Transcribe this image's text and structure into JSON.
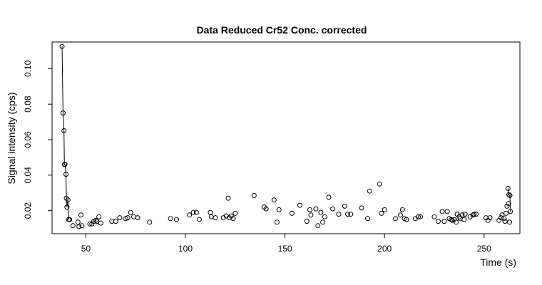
{
  "chart_data": {
    "type": "scatter",
    "title": "Data Reduced Cr52 Conc. corrected",
    "xlabel": "Time (s)",
    "ylabel": "Signal intensity (cps)",
    "xlim": [
      33,
      268
    ],
    "ylim": [
      0.007,
      0.115
    ],
    "x_ticks": [
      50,
      100,
      150,
      200,
      250
    ],
    "y_ticks": [
      0.02,
      0.04,
      0.06,
      0.08,
      0.1
    ],
    "x_tick_labels": [
      "50",
      "100",
      "150",
      "200",
      "250"
    ],
    "y_tick_labels": [
      "0.02",
      "0.04",
      "0.06",
      "0.08",
      "0.10"
    ],
    "grid": false,
    "legend": "none",
    "line_segments": [
      [
        [
          38.0,
          0.1125
        ],
        [
          38.5,
          0.075
        ],
        [
          39.0,
          0.065
        ],
        [
          39.2,
          0.046
        ],
        [
          39.5,
          0.046
        ],
        [
          40.0,
          0.0405
        ],
        [
          40.2,
          0.027
        ],
        [
          40.5,
          0.022
        ],
        [
          41.0,
          0.026
        ],
        [
          41.5,
          0.015
        ]
      ],
      [
        [
          262.0,
          0.0325
        ],
        [
          262.5,
          0.029
        ],
        [
          263.0,
          0.0285
        ],
        [
          263.2,
          0.0195
        ]
      ]
    ],
    "points": [
      [
        38.0,
        0.1125
      ],
      [
        38.5,
        0.075
      ],
      [
        39.0,
        0.065
      ],
      [
        39.2,
        0.046
      ],
      [
        39.5,
        0.046
      ],
      [
        40.0,
        0.0405
      ],
      [
        40.2,
        0.027
      ],
      [
        40.5,
        0.022
      ],
      [
        41.0,
        0.026
      ],
      [
        41.3,
        0.015
      ],
      [
        41.8,
        0.015
      ],
      [
        43.5,
        0.0115
      ],
      [
        46.0,
        0.0135
      ],
      [
        46.5,
        0.011
      ],
      [
        47.5,
        0.0175
      ],
      [
        48.0,
        0.0115
      ],
      [
        52.0,
        0.0125
      ],
      [
        53.0,
        0.0125
      ],
      [
        54.0,
        0.014
      ],
      [
        55.0,
        0.0145
      ],
      [
        55.5,
        0.014
      ],
      [
        56.5,
        0.0165
      ],
      [
        57.5,
        0.013
      ],
      [
        63.0,
        0.014
      ],
      [
        65.0,
        0.014
      ],
      [
        67.0,
        0.016
      ],
      [
        70.0,
        0.0155
      ],
      [
        71.0,
        0.016
      ],
      [
        72.5,
        0.019
      ],
      [
        74.0,
        0.0165
      ],
      [
        76.0,
        0.016
      ],
      [
        82.0,
        0.0135
      ],
      [
        92.5,
        0.0155
      ],
      [
        95.5,
        0.015
      ],
      [
        102.0,
        0.0175
      ],
      [
        104.0,
        0.019
      ],
      [
        105.5,
        0.019
      ],
      [
        107.0,
        0.015
      ],
      [
        112.5,
        0.019
      ],
      [
        113.0,
        0.0165
      ],
      [
        115.0,
        0.016
      ],
      [
        119.0,
        0.016
      ],
      [
        120.5,
        0.017
      ],
      [
        121.5,
        0.027
      ],
      [
        122.0,
        0.016
      ],
      [
        123.0,
        0.017
      ],
      [
        124.0,
        0.0155
      ],
      [
        125.0,
        0.0185
      ],
      [
        134.5,
        0.0285
      ],
      [
        139.5,
        0.022
      ],
      [
        140.5,
        0.021
      ],
      [
        144.5,
        0.026
      ],
      [
        146.0,
        0.0135
      ],
      [
        147.0,
        0.0205
      ],
      [
        153.5,
        0.0185
      ],
      [
        157.5,
        0.023
      ],
      [
        161.0,
        0.014
      ],
      [
        162.5,
        0.0205
      ],
      [
        163.0,
        0.0175
      ],
      [
        165.5,
        0.021
      ],
      [
        166.5,
        0.0115
      ],
      [
        168.0,
        0.019
      ],
      [
        169.0,
        0.0135
      ],
      [
        170.0,
        0.0165
      ],
      [
        172.0,
        0.0275
      ],
      [
        174.0,
        0.021
      ],
      [
        177.0,
        0.018
      ],
      [
        180.0,
        0.0225
      ],
      [
        181.5,
        0.018
      ],
      [
        183.0,
        0.018
      ],
      [
        188.5,
        0.0215
      ],
      [
        191.5,
        0.0155
      ],
      [
        192.5,
        0.031
      ],
      [
        197.5,
        0.035
      ],
      [
        198.5,
        0.0185
      ],
      [
        200.0,
        0.0205
      ],
      [
        205.5,
        0.0155
      ],
      [
        208.0,
        0.0175
      ],
      [
        209.0,
        0.0205
      ],
      [
        210.0,
        0.0155
      ],
      [
        211.0,
        0.015
      ],
      [
        215.5,
        0.0155
      ],
      [
        217.0,
        0.0165
      ],
      [
        218.0,
        0.0165
      ],
      [
        225.0,
        0.0165
      ],
      [
        227.0,
        0.014
      ],
      [
        229.0,
        0.0195
      ],
      [
        230.0,
        0.014
      ],
      [
        231.5,
        0.0195
      ],
      [
        232.5,
        0.0155
      ],
      [
        233.5,
        0.015
      ],
      [
        234.0,
        0.0145
      ],
      [
        235.0,
        0.015
      ],
      [
        236.0,
        0.0135
      ],
      [
        236.5,
        0.018
      ],
      [
        237.5,
        0.0165
      ],
      [
        238.0,
        0.0155
      ],
      [
        239.0,
        0.0175
      ],
      [
        240.0,
        0.015
      ],
      [
        240.5,
        0.018
      ],
      [
        243.0,
        0.0165
      ],
      [
        244.5,
        0.0175
      ],
      [
        245.0,
        0.018
      ],
      [
        246.0,
        0.018
      ],
      [
        251.0,
        0.016
      ],
      [
        252.0,
        0.0145
      ],
      [
        253.0,
        0.016
      ],
      [
        257.5,
        0.0145
      ],
      [
        258.5,
        0.016
      ],
      [
        259.0,
        0.0175
      ],
      [
        260.0,
        0.0155
      ],
      [
        260.5,
        0.014
      ],
      [
        261.0,
        0.0185
      ],
      [
        261.5,
        0.0225
      ],
      [
        262.0,
        0.0325
      ],
      [
        262.3,
        0.024
      ],
      [
        262.5,
        0.029
      ],
      [
        262.8,
        0.0135
      ],
      [
        263.0,
        0.0285
      ],
      [
        263.2,
        0.0195
      ]
    ]
  }
}
